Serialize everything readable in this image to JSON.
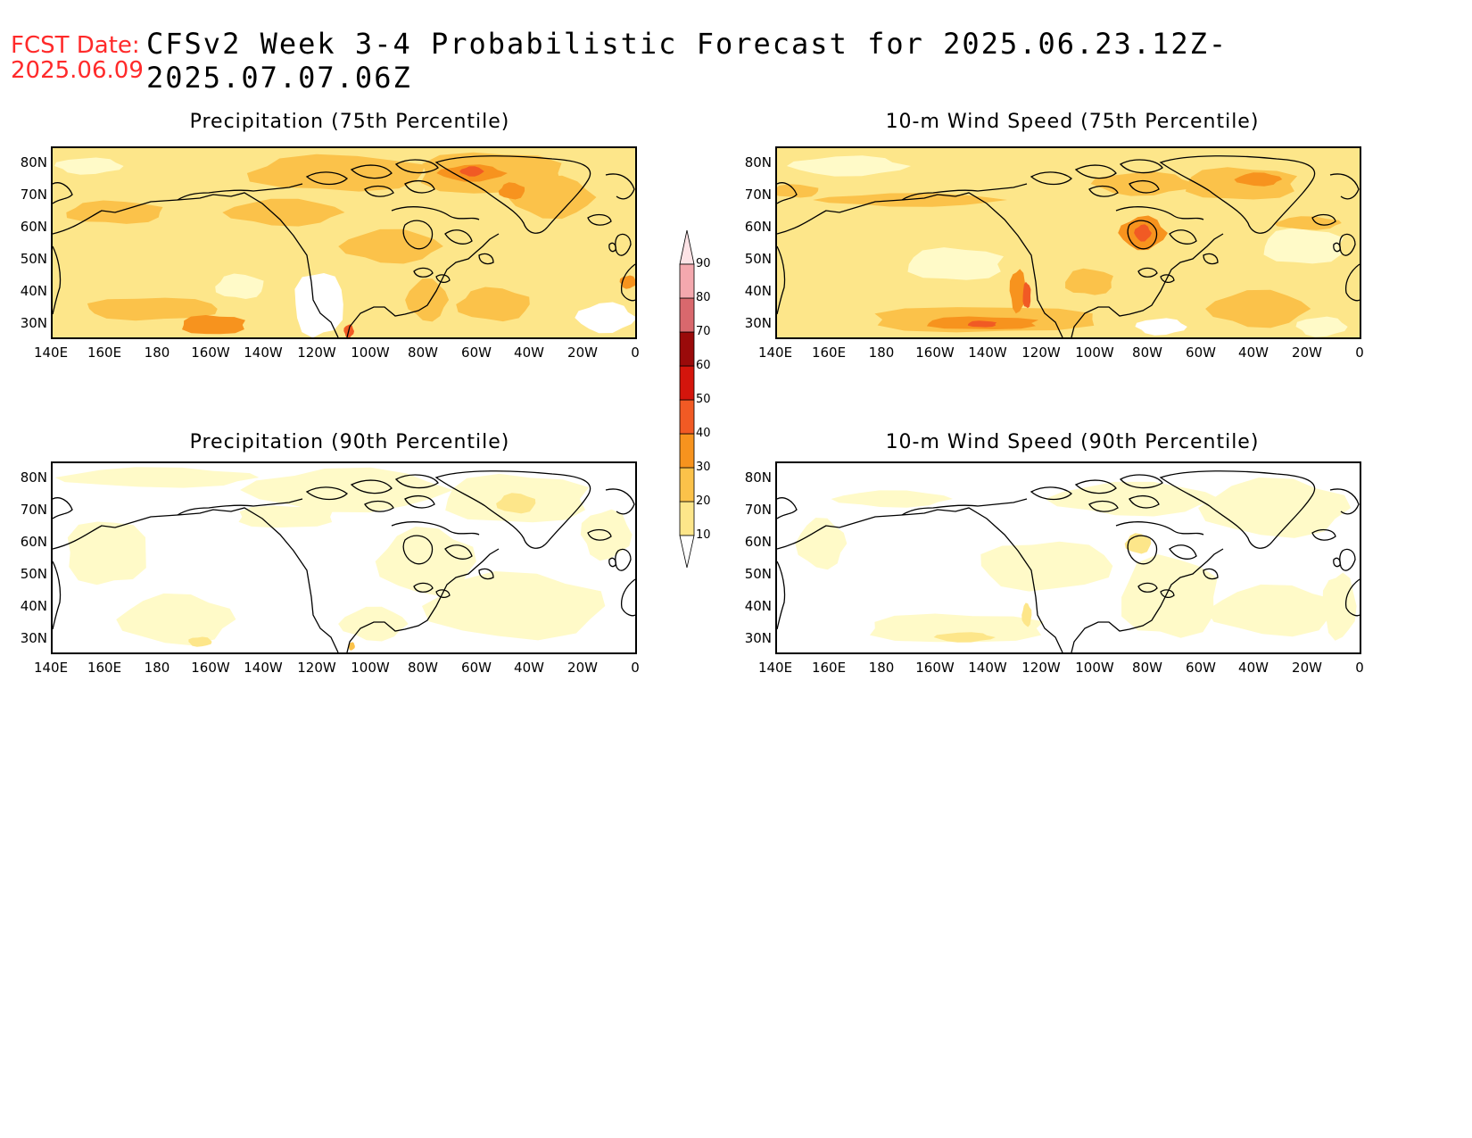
{
  "header": {
    "fcst_date_label": "FCST Date:",
    "fcst_date_value": "2025.06.09",
    "title": "CFSv2 Week 3-4 Probabilistic Forecast for 2025.06.23.12Z-2025.07.07.06Z"
  },
  "panels": [
    {
      "id": "precip75",
      "title": "Precipitation (75th Percentile)"
    },
    {
      "id": "wind75",
      "title": "10-m Wind Speed (75th Percentile)"
    },
    {
      "id": "precip90",
      "title": "Precipitation (90th Percentile)"
    },
    {
      "id": "wind90",
      "title": "10-m Wind Speed (90th Percentile)"
    }
  ],
  "axes": {
    "lat_labels": [
      "80N",
      "70N",
      "60N",
      "50N",
      "40N",
      "30N"
    ],
    "lon_labels": [
      "140E",
      "160E",
      "180",
      "160W",
      "140W",
      "120W",
      "100W",
      "80W",
      "60W",
      "40W",
      "20W",
      "0"
    ]
  },
  "colorbar": {
    "levels": [
      "10",
      "20",
      "30",
      "40",
      "50",
      "60",
      "70",
      "80",
      "90"
    ],
    "colors": [
      "#fffac8",
      "#fde68a",
      "#fbc24a",
      "#f7931e",
      "#f15a24",
      "#d4150c",
      "#9a0a0a",
      "#d9686d",
      "#f4a8ae",
      "#fde3e6"
    ]
  },
  "colors": {
    "fcst_date": "#ff2a2a",
    "land_outline": "#000000"
  }
}
